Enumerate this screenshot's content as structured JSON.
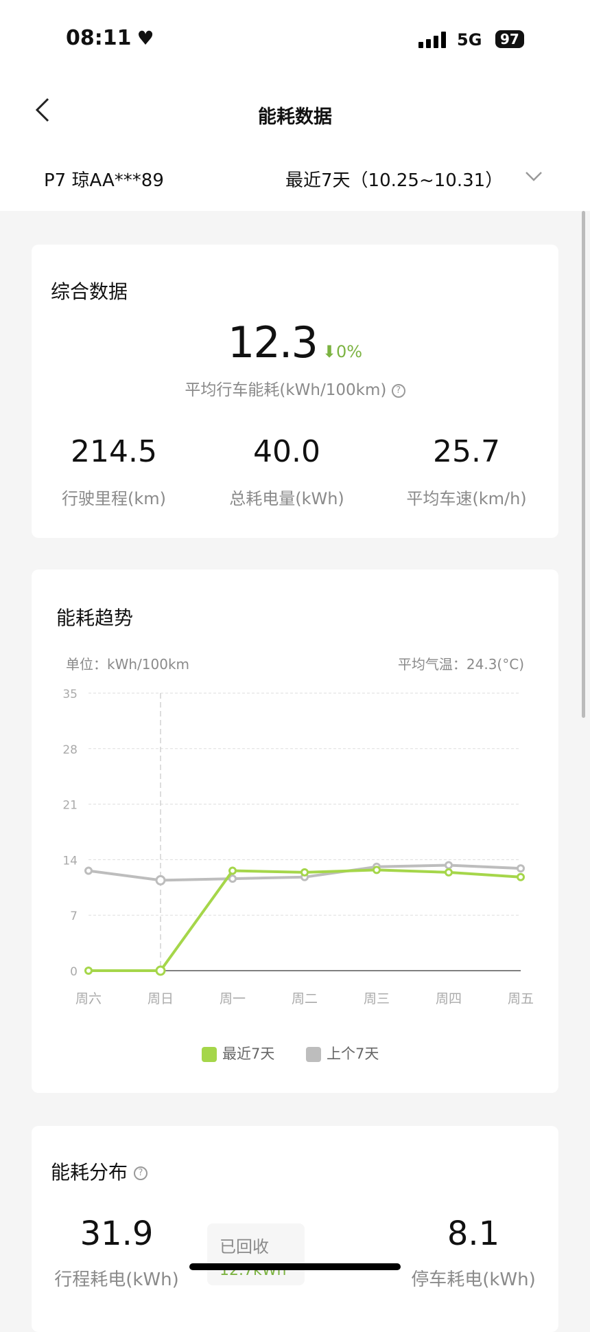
{
  "status_bar": {
    "time": "08:11",
    "network": "5G",
    "battery": "97",
    "icons": [
      "heart-icon",
      "signal-icon",
      "battery-icon"
    ]
  },
  "header": {
    "title": "能耗数据",
    "back_icon": "chevron-left-icon"
  },
  "vehicle": {
    "name": "P7 琼AA***89",
    "period": "最近7天（10.25~10.31）",
    "dropdown_icon": "chevron-down-icon"
  },
  "summary": {
    "title": "综合数据",
    "avg_value": "12.3",
    "change": "0%",
    "change_icon": "arrow-down-icon",
    "avg_label": "平均行车能耗(kWh/100km)",
    "stats": [
      {
        "value": "214.5",
        "label": "行驶里程(km)"
      },
      {
        "value": "40.0",
        "label": "总耗电量(kWh)"
      },
      {
        "value": "25.7",
        "label": "平均车速(km/h)"
      }
    ]
  },
  "trend": {
    "title": "能耗趋势",
    "unit": "单位：kWh/100km",
    "temp": "平均气温：24.3(°C)"
  },
  "chart_data": {
    "type": "line",
    "categories": [
      "周六",
      "周日",
      "周一",
      "周二",
      "周三",
      "周四",
      "周五"
    ],
    "yticks": [
      "0",
      "7",
      "14",
      "21",
      "28",
      "35"
    ],
    "ylim": [
      0,
      35
    ],
    "grid": true,
    "legend": "bottom",
    "highlight_category": "周日",
    "series": [
      {
        "name": "最近7天",
        "color": "#a5d64a",
        "values": [
          0,
          0,
          12.6,
          12.4,
          12.7,
          12.4,
          11.8
        ]
      },
      {
        "name": "上个7天",
        "color": "#bdbdbd",
        "values": [
          12.6,
          11.4,
          11.6,
          11.8,
          13.1,
          13.3,
          12.9
        ]
      }
    ]
  },
  "distribution": {
    "title": "能耗分布",
    "trip": {
      "value": "31.9",
      "label": "行程耗电(kWh)"
    },
    "recovered": {
      "label": "已回收",
      "value": "12.7kWh"
    },
    "parked": {
      "value": "8.1",
      "label": "停车耗电(kWh)"
    }
  }
}
